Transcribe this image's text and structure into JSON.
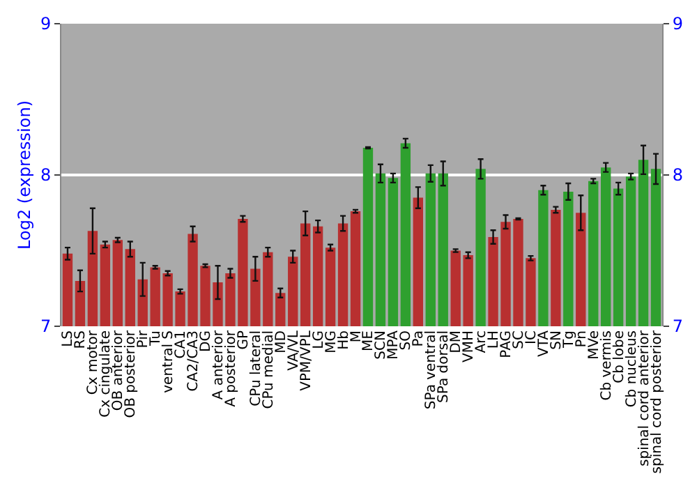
{
  "chart_data": {
    "type": "bar",
    "ylabel": "Log2 (expression)",
    "categories": [
      "LS",
      "RS",
      "Cx motor",
      "Cx cingulate",
      "OB anterior",
      "OB posterior",
      "Pir",
      "Tu",
      "ventral S",
      "CA1",
      "CA2/CA3",
      "DG",
      "A anterior",
      "A posterior",
      "GP",
      "CPu lateral",
      "CPu medial",
      "MD",
      "VA/VL",
      "VPM/VPL",
      "LG",
      "MG",
      "Hb",
      "M",
      "ME",
      "SCN",
      "MPA",
      "SO",
      "Pa",
      "SPa ventral",
      "SPa dorsal",
      "DM",
      "VMH",
      "Arc",
      "LH",
      "PAG",
      "SC",
      "IC",
      "VTA",
      "SN",
      "Tg",
      "Pn",
      "MVe",
      "Cb vermis",
      "Cb lobe",
      "Cb nucleus",
      "spinal cord anterior",
      "spinal cord posterior"
    ],
    "values": [
      7.48,
      7.3,
      7.63,
      7.54,
      7.57,
      7.51,
      7.31,
      7.39,
      7.35,
      7.23,
      7.61,
      7.4,
      7.29,
      7.35,
      7.71,
      7.38,
      7.49,
      7.22,
      7.46,
      7.68,
      7.66,
      7.52,
      7.68,
      7.76,
      8.18,
      8.01,
      7.98,
      8.21,
      7.85,
      8.01,
      8.01,
      7.5,
      7.47,
      8.04,
      7.59,
      7.69,
      7.71,
      7.45,
      7.9,
      7.77,
      7.89,
      7.75,
      7.96,
      8.05,
      7.91,
      7.99,
      8.1,
      8.04
    ],
    "errors": [
      0.04,
      0.07,
      0.15,
      0.02,
      0.015,
      0.05,
      0.11,
      0.01,
      0.015,
      0.015,
      0.05,
      0.01,
      0.11,
      0.03,
      0.02,
      0.08,
      0.03,
      0.03,
      0.04,
      0.08,
      0.04,
      0.02,
      0.05,
      0.01,
      0.005,
      0.06,
      0.03,
      0.03,
      0.07,
      0.055,
      0.08,
      0.01,
      0.02,
      0.065,
      0.045,
      0.045,
      0.005,
      0.015,
      0.03,
      0.02,
      0.055,
      0.115,
      0.015,
      0.03,
      0.04,
      0.02,
      0.095,
      0.1
    ],
    "colors": [
      "#b83030",
      "#b83030",
      "#b83030",
      "#b83030",
      "#b83030",
      "#b83030",
      "#b83030",
      "#b83030",
      "#b83030",
      "#b83030",
      "#b83030",
      "#b83030",
      "#b83030",
      "#b83030",
      "#b83030",
      "#b83030",
      "#b83030",
      "#b83030",
      "#b83030",
      "#b83030",
      "#b83030",
      "#b83030",
      "#b83030",
      "#b83030",
      "#2fa02f",
      "#2fa02f",
      "#2fa02f",
      "#2fa02f",
      "#b83030",
      "#2fa02f",
      "#2fa02f",
      "#b83030",
      "#b83030",
      "#2fa02f",
      "#b83030",
      "#b83030",
      "#b83030",
      "#b83030",
      "#2fa02f",
      "#b83030",
      "#2fa02f",
      "#b83030",
      "#2fa02f",
      "#2fa02f",
      "#2fa02f",
      "#2fa02f",
      "#2fa02f",
      "#2fa02f"
    ],
    "ylim": [
      7,
      9
    ],
    "yticks": [
      7,
      8,
      9
    ],
    "y2lim": [
      7,
      9
    ],
    "y2ticks": [
      7,
      8,
      9
    ],
    "grid": "y"
  }
}
